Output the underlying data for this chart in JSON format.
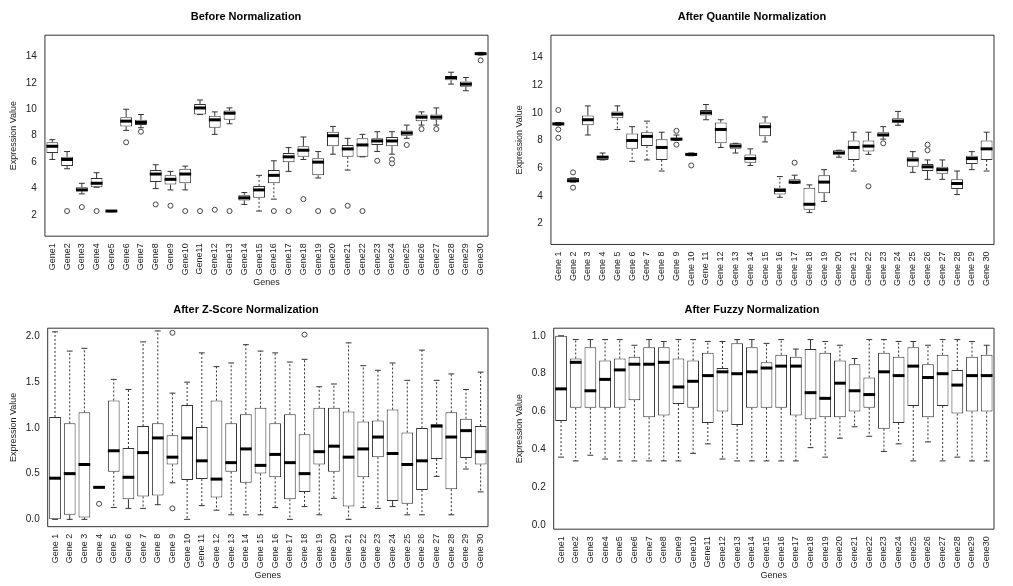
{
  "chart_data": [
    {
      "type": "box",
      "title": "Before Normalization",
      "xlabel": "Genes",
      "ylabel": "Expression Value",
      "ylim": [
        0.4,
        15.6
      ],
      "yticks": [
        2,
        4,
        6,
        8,
        10,
        12,
        14
      ],
      "categories": [
        "Gene1",
        "Gene2",
        "Gene3",
        "Gene4",
        "Gene5",
        "Gene6",
        "Gene7",
        "Gene8",
        "Gene9",
        "Gene10",
        "Gene11",
        "Gene12",
        "Gene13",
        "Gene14",
        "Gene15",
        "Gene16",
        "Gene17",
        "Gene18",
        "Gene19",
        "Gene20",
        "Gene21",
        "Gene22",
        "Gene23",
        "Gene24",
        "Gene25",
        "Gene26",
        "Gene27",
        "Gene28",
        "Gene29",
        "Gene30"
      ],
      "boxes": [
        {
          "low": 6.2,
          "q1": 6.7,
          "median": 7.2,
          "q3": 7.5,
          "high": 7.7
        },
        {
          "low": 5.5,
          "q1": 5.7,
          "median": 6.2,
          "q3": 6.4,
          "high": 6.8,
          "outliers": [
            2.3
          ]
        },
        {
          "low": 3.6,
          "q1": 3.8,
          "median": 3.9,
          "q3": 4.1,
          "high": 4.4,
          "outliers": [
            2.6
          ]
        },
        {
          "low": 4.1,
          "q1": 4.1,
          "median": 4.4,
          "q3": 4.8,
          "high": 5.2,
          "outliers": [
            2.3
          ]
        },
        {
          "low": 2.25,
          "q1": 2.25,
          "median": 2.3,
          "q3": 2.3,
          "high": 2.3
        },
        {
          "low": 8.4,
          "q1": 8.7,
          "median": 9.1,
          "q3": 9.4,
          "high": 10.0,
          "outliers": [
            7.5
          ]
        },
        {
          "low": 8.6,
          "q1": 8.8,
          "median": 9.0,
          "q3": 9.2,
          "high": 9.6,
          "outliers": [
            8.3
          ]
        },
        {
          "low": 4.0,
          "q1": 4.5,
          "median": 5.1,
          "q3": 5.4,
          "high": 5.8,
          "outliers": [
            2.8
          ]
        },
        {
          "low": 3.9,
          "q1": 4.3,
          "median": 4.7,
          "q3": 5.0,
          "high": 5.3,
          "outliers": [
            2.7
          ]
        },
        {
          "low": 3.9,
          "q1": 4.4,
          "median": 5.1,
          "q3": 5.5,
          "high": 5.7,
          "outliers": [
            2.3
          ]
        },
        {
          "low": 9.6,
          "q1": 9.6,
          "median": 10.1,
          "q3": 10.4,
          "high": 10.7,
          "outliers": [
            2.3
          ]
        },
        {
          "low": 8.1,
          "q1": 8.6,
          "median": 9.2,
          "q3": 9.5,
          "high": 9.8,
          "outliers": [
            2.4
          ]
        },
        {
          "low": 8.9,
          "q1": 9.2,
          "median": 9.7,
          "q3": 9.9,
          "high": 10.1,
          "outliers": [
            2.3
          ]
        },
        {
          "low": 2.8,
          "q1": 3.1,
          "median": 3.3,
          "q3": 3.5,
          "high": 3.7
        },
        {
          "low": 2.3,
          "q1": 3.3,
          "median": 3.9,
          "q3": 4.2,
          "high": 5.0
        },
        {
          "low": 3.2,
          "q1": 4.4,
          "median": 5.0,
          "q3": 5.4,
          "high": 6.1,
          "outliers": [
            2.3
          ]
        },
        {
          "low": 5.3,
          "q1": 6.0,
          "median": 6.4,
          "q3": 6.7,
          "high": 7.1,
          "outliers": [
            2.3
          ]
        },
        {
          "low": 6.2,
          "q1": 6.4,
          "median": 6.9,
          "q3": 7.2,
          "high": 7.9,
          "outliers": [
            3.2
          ]
        },
        {
          "low": 4.8,
          "q1": 5.0,
          "median": 6.0,
          "q3": 6.3,
          "high": 6.8,
          "outliers": [
            2.3
          ]
        },
        {
          "low": 6.6,
          "q1": 7.2,
          "median": 8.0,
          "q3": 8.3,
          "high": 8.7,
          "outliers": [
            2.3
          ]
        },
        {
          "low": 5.4,
          "q1": 6.4,
          "median": 7.0,
          "q3": 7.3,
          "high": 7.8,
          "outliers": [
            2.7
          ]
        },
        {
          "low": 6.4,
          "q1": 6.4,
          "median": 7.3,
          "q3": 7.8,
          "high": 8.1,
          "outliers": [
            2.3
          ]
        },
        {
          "low": 6.8,
          "q1": 7.3,
          "median": 7.6,
          "q3": 7.8,
          "high": 8.3,
          "outliers": [
            6.1
          ]
        },
        {
          "low": 6.6,
          "q1": 7.2,
          "median": 7.6,
          "q3": 7.9,
          "high": 8.3,
          "outliers": [
            6.2,
            5.9
          ]
        },
        {
          "low": 7.8,
          "q1": 8.0,
          "median": 8.2,
          "q3": 8.4,
          "high": 8.8,
          "outliers": [
            7.3
          ]
        },
        {
          "low": 8.8,
          "q1": 9.1,
          "median": 9.4,
          "q3": 9.6,
          "high": 9.8,
          "outliers": [
            8.5
          ]
        },
        {
          "low": 8.8,
          "q1": 9.2,
          "median": 9.4,
          "q3": 9.6,
          "high": 10.1,
          "outliers": [
            8.5
          ]
        },
        {
          "low": 11.9,
          "q1": 12.2,
          "median": 12.4,
          "q3": 12.5,
          "high": 12.8
        },
        {
          "low": 11.4,
          "q1": 11.7,
          "median": 11.9,
          "q3": 12.1,
          "high": 12.4
        },
        {
          "low": 14.1,
          "q1": 14.1,
          "median": 14.2,
          "q3": 14.3,
          "high": 14.3,
          "outliers": [
            13.7
          ]
        }
      ]
    },
    {
      "type": "box",
      "title": "After Quantile Normalization",
      "ylabel": "Expression Value",
      "ylim": [
        0.5,
        15.6
      ],
      "yticks": [
        2,
        4,
        6,
        8,
        10,
        12,
        14
      ],
      "categories": [
        "Gene 1",
        "Gene 2",
        "Gene 3",
        "Gene 4",
        "Gene 5",
        "Gene 6",
        "Gene 7",
        "Gene 8",
        "Gene 9",
        "Gene 10",
        "Gene 11",
        "Gene 12",
        "Gene 13",
        "Gene 14",
        "Gene 15",
        "Gene 16",
        "Gene 17",
        "Gene 18",
        "Gene 19",
        "Gene 20",
        "Gene 21",
        "Gene 22",
        "Gene 23",
        "Gene 24",
        "Gene 25",
        "Gene 26",
        "Gene 27",
        "Gene 28",
        "Gene 29",
        "Gene 30"
      ],
      "boxes": [
        {
          "low": 9.1,
          "q1": 9.1,
          "median": 9.2,
          "q3": 9.3,
          "high": 9.3,
          "outliers": [
            10.2,
            8.8,
            8.2
          ]
        },
        {
          "low": 5.0,
          "q1": 5.0,
          "median": 5.1,
          "q3": 5.3,
          "high": 5.3,
          "outliers": [
            5.7,
            4.6
          ]
        },
        {
          "low": 8.4,
          "q1": 9.1,
          "median": 9.5,
          "q3": 9.8,
          "high": 10.5
        },
        {
          "low": 6.6,
          "q1": 6.6,
          "median": 6.8,
          "q3": 6.9,
          "high": 7.1
        },
        {
          "low": 8.8,
          "q1": 9.6,
          "median": 9.9,
          "q3": 10.1,
          "high": 10.5
        },
        {
          "low": 6.5,
          "q1": 7.4,
          "median": 8.0,
          "q3": 8.5,
          "high": 9.0
        },
        {
          "low": 6.6,
          "q1": 7.6,
          "median": 8.3,
          "q3": 8.6,
          "high": 9.4
        },
        {
          "low": 5.8,
          "q1": 6.6,
          "median": 7.5,
          "q3": 8.1,
          "high": 8.6
        },
        {
          "low": 8.0,
          "q1": 8.0,
          "median": 8.1,
          "q3": 8.2,
          "high": 8.4,
          "outliers": [
            8.7,
            7.7
          ]
        },
        {
          "low": 6.9,
          "q1": 6.9,
          "median": 7.0,
          "q3": 7.1,
          "high": 7.1,
          "outliers": [
            6.2
          ]
        },
        {
          "low": 9.5,
          "q1": 9.8,
          "median": 10.0,
          "q3": 10.2,
          "high": 10.6
        },
        {
          "low": 7.5,
          "q1": 7.8,
          "median": 8.8,
          "q3": 9.3,
          "high": 9.5
        },
        {
          "low": 7.1,
          "q1": 7.4,
          "median": 7.6,
          "q3": 7.8,
          "high": 7.8
        },
        {
          "low": 6.2,
          "q1": 6.4,
          "median": 6.7,
          "q3": 7.0,
          "high": 7.4
        },
        {
          "low": 7.9,
          "q1": 8.3,
          "median": 9.0,
          "q3": 9.3,
          "high": 9.7
        },
        {
          "low": 3.9,
          "q1": 4.1,
          "median": 4.4,
          "q3": 4.6,
          "high": 5.4
        },
        {
          "low": 4.9,
          "q1": 4.9,
          "median": 5.0,
          "q3": 5.2,
          "high": 5.5,
          "outliers": [
            6.4
          ]
        },
        {
          "low": 2.8,
          "q1": 3.0,
          "median": 3.4,
          "q3": 4.6,
          "high": 4.8
        },
        {
          "low": 3.6,
          "q1": 4.2,
          "median": 5.0,
          "q3": 5.5,
          "high": 5.9
        },
        {
          "low": 6.8,
          "q1": 7.0,
          "median": 7.1,
          "q3": 7.3,
          "high": 7.3
        },
        {
          "low": 5.8,
          "q1": 6.6,
          "median": 7.5,
          "q3": 8.0,
          "high": 8.6
        },
        {
          "low": 7.0,
          "q1": 7.2,
          "median": 7.6,
          "q3": 8.0,
          "high": 8.6,
          "outliers": [
            4.7
          ]
        },
        {
          "low": 8.1,
          "q1": 8.3,
          "median": 8.4,
          "q3": 8.6,
          "high": 9.0,
          "outliers": [
            7.8
          ]
        },
        {
          "low": 9.1,
          "q1": 9.3,
          "median": 9.4,
          "q3": 9.6,
          "high": 10.1
        },
        {
          "low": 5.7,
          "q1": 6.1,
          "median": 6.6,
          "q3": 6.8,
          "high": 7.2
        },
        {
          "low": 5.2,
          "q1": 5.8,
          "median": 6.1,
          "q3": 6.3,
          "high": 6.6,
          "outliers": [
            7.3,
            7.7
          ]
        },
        {
          "low": 5.2,
          "q1": 5.6,
          "median": 5.9,
          "q3": 6.1,
          "high": 6.6
        },
        {
          "low": 4.1,
          "q1": 4.5,
          "median": 4.9,
          "q3": 5.2,
          "high": 5.8
        },
        {
          "low": 5.9,
          "q1": 6.3,
          "median": 6.7,
          "q3": 6.9,
          "high": 7.2
        },
        {
          "low": 5.8,
          "q1": 6.6,
          "median": 7.4,
          "q3": 8.0,
          "high": 8.6
        }
      ]
    },
    {
      "type": "box",
      "title": "After Z-Score Normalization",
      "xlabel": "Genes",
      "ylabel": "Expression Value",
      "ylim": [
        -0.08,
        2.09
      ],
      "yticks": [
        {
          "value": 0,
          "label": "0.0"
        },
        {
          "value": 0.5,
          "label": "0.5"
        },
        {
          "value": 1,
          "label": "1.0"
        },
        {
          "value": 1.5,
          "label": "1.5"
        },
        {
          "value": 2,
          "label": "2.0"
        }
      ],
      "categories": [
        "Gene 1",
        "Gene 2",
        "Gene 3",
        "Gene 4",
        "Gene 5",
        "Gene 6",
        "Gene 7",
        "Gene 8",
        "Gene 9",
        "Gene 10",
        "Gene 11",
        "Gene 12",
        "Gene 13",
        "Gene 14",
        "Gene 15",
        "Gene 16",
        "Gene 17",
        "Gene 18",
        "Gene 19",
        "Gene 20",
        "Gene 21",
        "Gene 22",
        "Gene 23",
        "Gene 24",
        "Gene 25",
        "Gene 26",
        "Gene 27",
        "Gene 28",
        "Gene 29",
        "Gene 30"
      ],
      "boxes": [
        {
          "low": 0.0,
          "q1": 0.0,
          "median": 0.45,
          "q3": 1.12,
          "high": 2.05
        },
        {
          "low": 0.0,
          "q1": 0.05,
          "median": 0.5,
          "q3": 1.05,
          "high": 1.84
        },
        {
          "low": 0.0,
          "q1": 0.02,
          "median": 0.6,
          "q3": 1.17,
          "high": 1.87
        },
        {
          "low": 0.35,
          "q1": 0.35,
          "median": 0.35,
          "q3": 0.35,
          "high": 0.35,
          "outliers": [
            0.17
          ]
        },
        {
          "low": 0.13,
          "q1": 0.52,
          "median": 0.75,
          "q3": 1.3,
          "high": 1.53
        },
        {
          "low": 0.12,
          "q1": 0.22,
          "median": 0.46,
          "q3": 0.78,
          "high": 1.42
        },
        {
          "low": 0.12,
          "q1": 0.25,
          "median": 0.73,
          "q3": 1.02,
          "high": 1.94
        },
        {
          "low": 0.16,
          "q1": 0.26,
          "median": 0.89,
          "q3": 1.05,
          "high": 2.06
        },
        {
          "low": 0.4,
          "q1": 0.6,
          "median": 0.68,
          "q3": 0.92,
          "high": 1.38,
          "outliers": [
            2.04,
            0.12
          ]
        },
        {
          "low": 0.0,
          "q1": 0.43,
          "median": 0.89,
          "q3": 1.25,
          "high": 1.5
        },
        {
          "low": 0.15,
          "q1": 0.44,
          "median": 0.64,
          "q3": 1.01,
          "high": 1.82
        },
        {
          "low": 0.1,
          "q1": 0.24,
          "median": 0.44,
          "q3": 1.3,
          "high": 1.67
        },
        {
          "low": 0.05,
          "q1": 0.52,
          "median": 0.62,
          "q3": 1.05,
          "high": 1.71
        },
        {
          "low": 0.05,
          "q1": 0.4,
          "median": 0.77,
          "q3": 1.15,
          "high": 1.91
        },
        {
          "low": 0.05,
          "q1": 0.5,
          "median": 0.59,
          "q3": 1.22,
          "high": 1.84
        },
        {
          "low": 0.13,
          "q1": 0.46,
          "median": 0.71,
          "q3": 1.05,
          "high": 1.82
        },
        {
          "low": 0.0,
          "q1": 0.22,
          "median": 0.62,
          "q3": 1.15,
          "high": 1.72
        },
        {
          "low": 0.14,
          "q1": 0.3,
          "median": 0.5,
          "q3": 0.93,
          "high": 1.75,
          "outliers": [
            2.02
          ]
        },
        {
          "low": 0.05,
          "q1": 0.6,
          "median": 0.74,
          "q3": 1.22,
          "high": 1.45
        },
        {
          "low": 0.23,
          "q1": 0.52,
          "median": 0.8,
          "q3": 1.22,
          "high": 1.48
        },
        {
          "low": 0.0,
          "q1": 0.14,
          "median": 0.68,
          "q3": 1.18,
          "high": 1.93
        },
        {
          "low": 0.13,
          "q1": 0.46,
          "median": 0.77,
          "q3": 1.07,
          "high": 1.68
        },
        {
          "low": 0.12,
          "q1": 0.68,
          "median": 0.9,
          "q3": 1.08,
          "high": 1.63
        },
        {
          "low": 0.14,
          "q1": 0.2,
          "median": 0.72,
          "q3": 1.2,
          "high": 1.71
        },
        {
          "low": 0.05,
          "q1": 0.17,
          "median": 0.6,
          "q3": 0.95,
          "high": 1.52
        },
        {
          "low": 0.05,
          "q1": 0.32,
          "median": 0.64,
          "q3": 1.0,
          "high": 1.85
        },
        {
          "low": 0.47,
          "q1": 0.66,
          "median": 1.02,
          "q3": 1.04,
          "high": 1.52
        },
        {
          "low": 0.05,
          "q1": 0.33,
          "median": 0.9,
          "q3": 1.17,
          "high": 1.59
        },
        {
          "low": 0.55,
          "q1": 0.67,
          "median": 0.97,
          "q3": 1.1,
          "high": 1.42
        },
        {
          "low": 0.3,
          "q1": 0.6,
          "median": 0.74,
          "q3": 1.02,
          "high": 1.61
        }
      ]
    },
    {
      "type": "box",
      "title": "After Fuzzy Normalization",
      "xlabel": "Genes",
      "ylabel": "Expression Value",
      "ylim": [
        -0.02,
        1.04
      ],
      "yticks": [
        {
          "value": 0,
          "label": "0.0"
        },
        {
          "value": 0.2,
          "label": "0.2"
        },
        {
          "value": 0.4,
          "label": "0.4"
        },
        {
          "value": 0.6,
          "label": "0.6"
        },
        {
          "value": 0.8,
          "label": "0.8"
        },
        {
          "value": 1,
          "label": "1.0"
        }
      ],
      "categories": [
        "Gene1",
        "Gene2",
        "Gene3",
        "Gene4",
        "Gene5",
        "Gene6",
        "Gene7",
        "Gene8",
        "Gene9",
        "Gene10",
        "Gene11",
        "Gene12",
        "Gene13",
        "Gene14",
        "Gene15",
        "Gene16",
        "Gene17",
        "Gene18",
        "Gene19",
        "Gene20",
        "Gene21",
        "Gene22",
        "Gene23",
        "Gene24",
        "Gene25",
        "Gene26",
        "Gene27",
        "Gene28",
        "Gene29",
        "Gene30"
      ],
      "boxes": [
        {
          "low": 0.36,
          "q1": 0.55,
          "median": 0.72,
          "q3": 1.0,
          "high": 1.0
        },
        {
          "low": 0.34,
          "q1": 0.62,
          "median": 0.86,
          "q3": 0.88,
          "high": 0.98
        },
        {
          "low": 0.37,
          "q1": 0.62,
          "median": 0.71,
          "q3": 0.94,
          "high": 0.98
        },
        {
          "low": 0.35,
          "q1": 0.62,
          "median": 0.77,
          "q3": 0.87,
          "high": 0.98
        },
        {
          "low": 0.34,
          "q1": 0.62,
          "median": 0.82,
          "q3": 0.88,
          "high": 0.98
        },
        {
          "low": 0.34,
          "q1": 0.66,
          "median": 0.85,
          "q3": 0.89,
          "high": 0.95
        },
        {
          "low": 0.34,
          "q1": 0.57,
          "median": 0.85,
          "q3": 0.94,
          "high": 0.98
        },
        {
          "low": 0.34,
          "q1": 0.58,
          "median": 0.86,
          "q3": 0.94,
          "high": 0.97
        },
        {
          "low": 0.34,
          "q1": 0.64,
          "median": 0.73,
          "q3": 0.88,
          "high": 0.98
        },
        {
          "low": 0.38,
          "q1": 0.62,
          "median": 0.76,
          "q3": 0.87,
          "high": 0.98
        },
        {
          "low": 0.43,
          "q1": 0.54,
          "median": 0.79,
          "q3": 0.91,
          "high": 0.97
        },
        {
          "low": 0.35,
          "q1": 0.6,
          "median": 0.81,
          "q3": 0.83,
          "high": 0.97
        },
        {
          "low": 0.34,
          "q1": 0.53,
          "median": 0.8,
          "q3": 0.96,
          "high": 0.98
        },
        {
          "low": 0.34,
          "q1": 0.62,
          "median": 0.81,
          "q3": 0.94,
          "high": 0.98
        },
        {
          "low": 0.34,
          "q1": 0.62,
          "median": 0.83,
          "q3": 0.86,
          "high": 0.96
        },
        {
          "low": 0.34,
          "q1": 0.62,
          "median": 0.84,
          "q3": 0.9,
          "high": 0.98
        },
        {
          "low": 0.34,
          "q1": 0.58,
          "median": 0.84,
          "q3": 0.89,
          "high": 0.93
        },
        {
          "low": 0.41,
          "q1": 0.56,
          "median": 0.7,
          "q3": 0.93,
          "high": 0.98
        },
        {
          "low": 0.36,
          "q1": 0.57,
          "median": 0.67,
          "q3": 0.91,
          "high": 0.97
        },
        {
          "low": 0.46,
          "q1": 0.57,
          "median": 0.75,
          "q3": 0.87,
          "high": 0.95
        },
        {
          "low": 0.52,
          "q1": 0.6,
          "median": 0.71,
          "q3": 0.85,
          "high": 0.88
        },
        {
          "low": 0.47,
          "q1": 0.62,
          "median": 0.69,
          "q3": 0.78,
          "high": 0.98
        },
        {
          "low": 0.39,
          "q1": 0.51,
          "median": 0.81,
          "q3": 0.91,
          "high": 0.98
        },
        {
          "low": 0.43,
          "q1": 0.54,
          "median": 0.79,
          "q3": 0.89,
          "high": 0.97
        },
        {
          "low": 0.34,
          "q1": 0.63,
          "median": 0.84,
          "q3": 0.94,
          "high": 0.97
        },
        {
          "low": 0.44,
          "q1": 0.57,
          "median": 0.78,
          "q3": 0.85,
          "high": 0.95
        },
        {
          "low": 0.34,
          "q1": 0.63,
          "median": 0.8,
          "q3": 0.9,
          "high": 0.98
        },
        {
          "low": 0.36,
          "q1": 0.59,
          "median": 0.74,
          "q3": 0.82,
          "high": 0.98
        },
        {
          "low": 0.34,
          "q1": 0.6,
          "median": 0.79,
          "q3": 0.89,
          "high": 0.97
        },
        {
          "low": 0.34,
          "q1": 0.6,
          "median": 0.79,
          "q3": 0.9,
          "high": 0.95
        }
      ]
    }
  ]
}
